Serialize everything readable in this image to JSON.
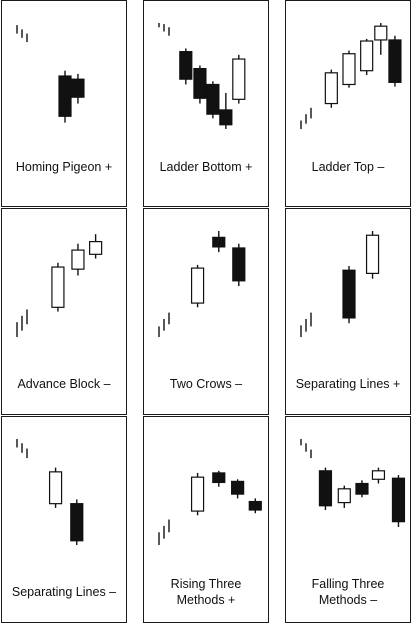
{
  "colors": {
    "ink": "#111111",
    "paper": "#ffffff",
    "border": "#1a1a1a"
  },
  "panels": [
    {
      "caption": [
        "Homing Pigeon +"
      ],
      "ticks": [
        [
          0,
          0.9,
          0.98
        ],
        [
          1,
          0.86,
          0.94
        ],
        [
          2,
          0.82,
          0.9
        ]
      ],
      "candles": [
        {
          "pos": 4.5,
          "high": 0.55,
          "low": 0.06,
          "open": 0.5,
          "close": 0.12,
          "fill": "black"
        },
        {
          "pos": 5.6,
          "high": 0.52,
          "low": 0.24,
          "open": 0.47,
          "close": 0.3,
          "fill": "black"
        }
      ]
    },
    {
      "caption": [
        "Ladder Bottom +"
      ],
      "ticks": [
        [
          0,
          0.96,
          1.0
        ],
        [
          1,
          0.92,
          0.99
        ],
        [
          2,
          0.88,
          0.96
        ]
      ],
      "candles": [
        {
          "pos": 2.7,
          "high": 0.76,
          "low": 0.42,
          "open": 0.73,
          "close": 0.47,
          "fill": "black"
        },
        {
          "pos": 3.9,
          "high": 0.6,
          "low": 0.24,
          "open": 0.57,
          "close": 0.29,
          "fill": "black"
        },
        {
          "pos": 5.0,
          "high": 0.45,
          "low": 0.1,
          "open": 0.42,
          "close": 0.14,
          "fill": "black"
        },
        {
          "pos": 6.1,
          "high": 0.34,
          "low": 0.0,
          "open": 0.18,
          "close": 0.04,
          "fill": "black"
        },
        {
          "pos": 7.2,
          "high": 0.7,
          "low": 0.24,
          "open": 0.28,
          "close": 0.66,
          "fill": "white"
        }
      ]
    },
    {
      "caption": [
        "Ladder Top –"
      ],
      "ticks": [
        [
          0,
          0.0,
          0.08
        ],
        [
          1,
          0.05,
          0.14
        ],
        [
          2,
          0.1,
          0.2
        ]
      ],
      "candles": [
        {
          "pos": 3.0,
          "high": 0.56,
          "low": 0.2,
          "open": 0.24,
          "close": 0.53,
          "fill": "white"
        },
        {
          "pos": 4.5,
          "high": 0.74,
          "low": 0.39,
          "open": 0.42,
          "close": 0.71,
          "fill": "white"
        },
        {
          "pos": 6.0,
          "high": 0.85,
          "low": 0.51,
          "open": 0.55,
          "close": 0.83,
          "fill": "white"
        },
        {
          "pos": 7.2,
          "high": 1.0,
          "low": 0.7,
          "open": 0.84,
          "close": 0.97,
          "fill": "white"
        },
        {
          "pos": 8.4,
          "high": 0.88,
          "low": 0.4,
          "open": 0.84,
          "close": 0.44,
          "fill": "black"
        }
      ]
    },
    {
      "caption": [
        "Advance Block –"
      ],
      "ticks": [
        [
          0,
          0.0,
          0.14
        ],
        [
          1,
          0.06,
          0.2
        ],
        [
          2,
          0.12,
          0.26
        ]
      ],
      "candles": [
        {
          "pos": 3.9,
          "high": 0.7,
          "low": 0.24,
          "open": 0.28,
          "close": 0.66,
          "fill": "white"
        },
        {
          "pos": 5.6,
          "high": 0.88,
          "low": 0.58,
          "open": 0.64,
          "close": 0.82,
          "fill": "white"
        },
        {
          "pos": 7.1,
          "high": 0.97,
          "low": 0.74,
          "open": 0.78,
          "close": 0.9,
          "fill": "white"
        }
      ]
    },
    {
      "caption": [
        "Two Crows –"
      ],
      "ticks": [
        [
          0,
          0.0,
          0.1
        ],
        [
          1,
          0.06,
          0.17
        ],
        [
          2,
          0.12,
          0.23
        ]
      ],
      "candles": [
        {
          "pos": 3.7,
          "high": 0.68,
          "low": 0.28,
          "open": 0.32,
          "close": 0.65,
          "fill": "white"
        },
        {
          "pos": 5.5,
          "high": 1.0,
          "low": 0.8,
          "open": 0.94,
          "close": 0.85,
          "fill": "black"
        },
        {
          "pos": 7.2,
          "high": 0.88,
          "low": 0.48,
          "open": 0.84,
          "close": 0.53,
          "fill": "black"
        }
      ]
    },
    {
      "caption": [
        "Separating Lines +"
      ],
      "ticks": [
        [
          0,
          0.0,
          0.11
        ],
        [
          1,
          0.05,
          0.17
        ],
        [
          2,
          0.1,
          0.23
        ]
      ],
      "candles": [
        {
          "pos": 4.5,
          "high": 0.67,
          "low": 0.13,
          "open": 0.63,
          "close": 0.18,
          "fill": "black"
        },
        {
          "pos": 6.5,
          "high": 1.0,
          "low": 0.55,
          "open": 0.6,
          "close": 0.96,
          "fill": "white"
        }
      ]
    },
    {
      "caption": [
        "Separating Lines –"
      ],
      "ticks": [
        [
          0,
          0.92,
          1.0
        ],
        [
          1,
          0.87,
          0.96
        ],
        [
          2,
          0.82,
          0.91
        ]
      ],
      "candles": [
        {
          "pos": 3.7,
          "high": 0.73,
          "low": 0.35,
          "open": 0.39,
          "close": 0.69,
          "fill": "white"
        },
        {
          "pos": 5.5,
          "high": 0.43,
          "low": 0.0,
          "open": 0.39,
          "close": 0.04,
          "fill": "black"
        }
      ]
    },
    {
      "caption": [
        "Rising Three",
        "Methods +"
      ],
      "ticks": [
        [
          0,
          0.0,
          0.12
        ],
        [
          1,
          0.06,
          0.18
        ],
        [
          2,
          0.12,
          0.24
        ]
      ],
      "candles": [
        {
          "pos": 3.7,
          "high": 0.68,
          "low": 0.28,
          "open": 0.32,
          "close": 0.64,
          "fill": "white"
        },
        {
          "pos": 5.5,
          "high": 0.7,
          "low": 0.55,
          "open": 0.68,
          "close": 0.59,
          "fill": "black"
        },
        {
          "pos": 7.1,
          "high": 0.62,
          "low": 0.44,
          "open": 0.6,
          "close": 0.48,
          "fill": "black"
        },
        {
          "pos": 8.6,
          "high": 0.44,
          "low": 0.3,
          "open": 0.41,
          "close": 0.33,
          "fill": "black"
        }
      ]
    },
    {
      "caption": [
        "Falling Three",
        "Methods –"
      ],
      "ticks": [
        [
          0,
          0.94,
          1.0
        ],
        [
          1,
          0.88,
          0.96
        ],
        [
          2,
          0.82,
          0.9
        ]
      ],
      "candles": [
        {
          "pos": 2.5,
          "high": 0.73,
          "low": 0.33,
          "open": 0.7,
          "close": 0.37,
          "fill": "black"
        },
        {
          "pos": 4.1,
          "high": 0.56,
          "low": 0.35,
          "open": 0.4,
          "close": 0.53,
          "fill": "white"
        },
        {
          "pos": 5.6,
          "high": 0.61,
          "low": 0.45,
          "open": 0.48,
          "close": 0.58,
          "fill": "black"
        },
        {
          "pos": 7.0,
          "high": 0.73,
          "low": 0.58,
          "open": 0.62,
          "close": 0.7,
          "fill": "white"
        },
        {
          "pos": 8.7,
          "high": 0.66,
          "low": 0.17,
          "open": 0.63,
          "close": 0.22,
          "fill": "black"
        }
      ]
    }
  ]
}
